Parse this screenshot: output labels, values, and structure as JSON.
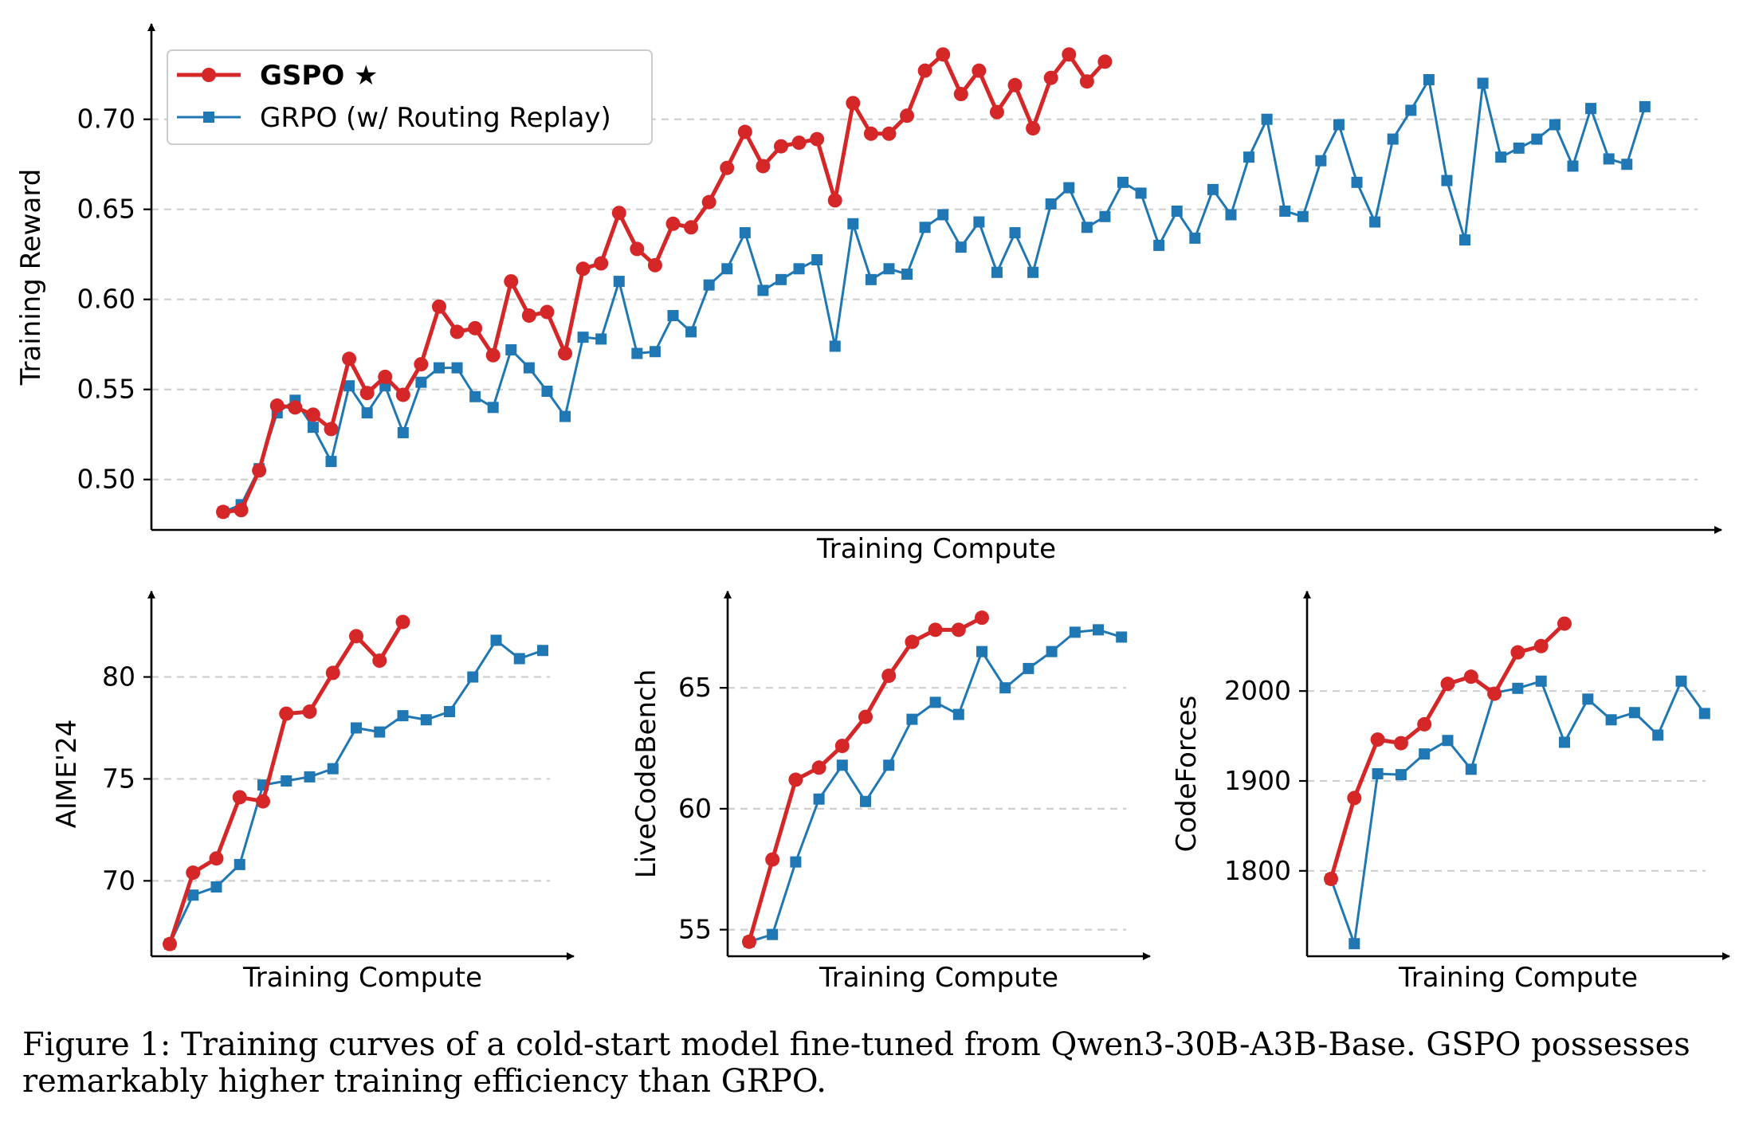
{
  "caption": "Figure 1: Training curves of a cold-start model fine-tuned from Qwen3-30B-A3B-Base. GSPO possesses remarkably higher training efficiency than GRPO.",
  "legend": {
    "gspo": "GSPO ★",
    "grpo": "GRPO (w/ Routing Replay)"
  },
  "colors": {
    "gspo": "#d62728",
    "grpo": "#1f77b4"
  },
  "chart_data": [
    {
      "type": "line",
      "id": "reward",
      "xlabel": "Training Compute",
      "ylabel": "Training Reward",
      "ylim": [
        0.472,
        0.745
      ],
      "yticks": [
        0.5,
        0.55,
        0.6,
        0.65,
        0.7
      ],
      "ytick_labels": [
        "0.50",
        "0.55",
        "0.60",
        "0.65",
        "0.70"
      ],
      "grid": "horizontal dashed",
      "legend_position": "top-left",
      "series": [
        {
          "name": "GSPO ★",
          "values": [
            0.482,
            0.483,
            0.505,
            0.541,
            0.54,
            0.536,
            0.528,
            0.567,
            0.548,
            0.557,
            0.547,
            0.564,
            0.596,
            0.582,
            0.584,
            0.569,
            0.61,
            0.591,
            0.593,
            0.57,
            0.617,
            0.62,
            0.648,
            0.628,
            0.619,
            0.642,
            0.64,
            0.654,
            0.673,
            0.693,
            0.674,
            0.685,
            0.687,
            0.689,
            0.655,
            0.709,
            0.692,
            0.692,
            0.702,
            0.727,
            0.736,
            0.714,
            0.727,
            0.704,
            0.719,
            0.695,
            0.723,
            0.736,
            0.721,
            0.732
          ]
        },
        {
          "name": "GRPO (w/ Routing Replay)",
          "values": [
            0.482,
            0.486,
            0.506,
            0.537,
            0.544,
            0.529,
            0.51,
            0.552,
            0.537,
            0.552,
            0.526,
            0.554,
            0.562,
            0.562,
            0.546,
            0.54,
            0.572,
            0.562,
            0.549,
            0.535,
            0.579,
            0.578,
            0.61,
            0.57,
            0.571,
            0.591,
            0.582,
            0.608,
            0.617,
            0.637,
            0.605,
            0.611,
            0.617,
            0.622,
            0.574,
            0.642,
            0.611,
            0.617,
            0.614,
            0.64,
            0.647,
            0.629,
            0.643,
            0.615,
            0.637,
            0.615,
            0.653,
            0.662,
            0.64,
            0.646,
            0.665,
            0.659,
            0.63,
            0.649,
            0.634,
            0.661,
            0.647,
            0.679,
            0.7,
            0.649,
            0.646,
            0.677,
            0.697,
            0.665,
            0.643,
            0.689,
            0.705,
            0.722,
            0.666,
            0.633,
            0.72,
            0.679,
            0.684,
            0.689,
            0.697,
            0.674,
            0.706,
            0.678,
            0.675,
            0.707
          ]
        }
      ]
    },
    {
      "type": "line",
      "id": "aime",
      "xlabel": "Training Compute",
      "ylabel": "AIME'24",
      "ylim": [
        66.3,
        83.5
      ],
      "yticks": [
        70,
        75,
        80
      ],
      "ytick_labels": [
        "70",
        "75",
        "80"
      ],
      "grid": "horizontal dashed",
      "series": [
        {
          "name": "GSPO ★",
          "values": [
            66.9,
            70.4,
            71.1,
            74.1,
            73.9,
            78.2,
            78.3,
            80.2,
            82.0,
            80.8,
            82.7
          ]
        },
        {
          "name": "GRPO (w/ Routing Replay)",
          "values": [
            66.9,
            69.3,
            69.7,
            70.8,
            74.7,
            74.9,
            75.1,
            75.5,
            77.5,
            77.3,
            78.1,
            77.9,
            78.3,
            80.0,
            81.8,
            80.9,
            81.3
          ]
        }
      ]
    },
    {
      "type": "line",
      "id": "livecodebench",
      "xlabel": "Training Compute",
      "ylabel": "LiveCodeBench",
      "ylim": [
        53.9,
        68.4
      ],
      "yticks": [
        55,
        60,
        65
      ],
      "ytick_labels": [
        "55",
        "60",
        "65"
      ],
      "grid": "horizontal dashed",
      "series": [
        {
          "name": "GSPO ★",
          "values": [
            54.5,
            57.9,
            61.2,
            61.7,
            62.6,
            63.8,
            65.5,
            66.9,
            67.4,
            67.4,
            67.9
          ]
        },
        {
          "name": "GRPO (w/ Routing Replay)",
          "values": [
            54.5,
            54.8,
            57.8,
            60.4,
            61.8,
            60.3,
            61.8,
            63.7,
            64.4,
            63.9,
            66.5,
            65.0,
            65.8,
            66.5,
            67.3,
            67.4,
            67.1
          ]
        }
      ]
    },
    {
      "type": "line",
      "id": "codeforces",
      "xlabel": "Training Compute",
      "ylabel": "CodeForces",
      "ylim": [
        1705,
        2095
      ],
      "yticks": [
        1800,
        1900,
        2000
      ],
      "ytick_labels": [
        "1800",
        "1900",
        "2000"
      ],
      "grid": "horizontal dashed",
      "series": [
        {
          "name": "GSPO ★",
          "values": [
            1791,
            1881,
            1946,
            1942,
            1963,
            2008,
            2016,
            1997,
            2043,
            2050,
            2075
          ]
        },
        {
          "name": "GRPO (w/ Routing Replay)",
          "values": [
            1791,
            1719,
            1908,
            1907,
            1930,
            1945,
            1913,
            1998,
            2003,
            2011,
            1943,
            1991,
            1968,
            1976,
            1951,
            2011,
            1975
          ]
        }
      ]
    }
  ]
}
